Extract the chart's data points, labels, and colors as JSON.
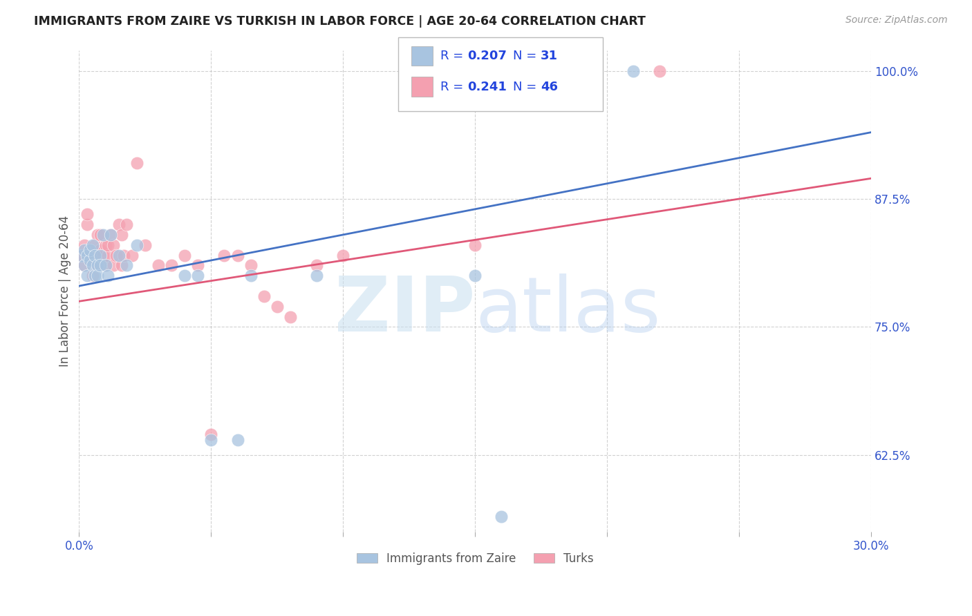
{
  "title": "IMMIGRANTS FROM ZAIRE VS TURKISH IN LABOR FORCE | AGE 20-64 CORRELATION CHART",
  "source": "Source: ZipAtlas.com",
  "ylabel": "In Labor Force | Age 20-64",
  "xlim": [
    0.0,
    0.3
  ],
  "ylim": [
    0.55,
    1.02
  ],
  "xticks": [
    0.0,
    0.05,
    0.1,
    0.15,
    0.2,
    0.25,
    0.3
  ],
  "xticklabels": [
    "0.0%",
    "",
    "",
    "",
    "",
    "",
    "30.0%"
  ],
  "yticks": [
    0.625,
    0.75,
    0.875,
    1.0
  ],
  "yticklabels": [
    "62.5%",
    "75.0%",
    "87.5%",
    "100.0%"
  ],
  "zaire_color": "#a8c4e0",
  "turks_color": "#f4a0b0",
  "zaire_line_color": "#4472c4",
  "turks_line_color": "#e05878",
  "legend_label_1": "Immigrants from Zaire",
  "legend_label_2": "Turks",
  "zaire_x": [
    0.001,
    0.002,
    0.002,
    0.003,
    0.003,
    0.004,
    0.004,
    0.005,
    0.005,
    0.006,
    0.006,
    0.007,
    0.007,
    0.008,
    0.008,
    0.009,
    0.01,
    0.011,
    0.012,
    0.015,
    0.018,
    0.022,
    0.04,
    0.045,
    0.05,
    0.06,
    0.065,
    0.09,
    0.15,
    0.21,
    0.16
  ],
  "zaire_y": [
    0.82,
    0.825,
    0.81,
    0.8,
    0.82,
    0.815,
    0.825,
    0.81,
    0.83,
    0.8,
    0.82,
    0.81,
    0.8,
    0.82,
    0.81,
    0.84,
    0.81,
    0.8,
    0.84,
    0.82,
    0.81,
    0.83,
    0.8,
    0.8,
    0.64,
    0.64,
    0.8,
    0.8,
    0.8,
    1.0,
    0.565
  ],
  "turks_x": [
    0.001,
    0.002,
    0.002,
    0.003,
    0.003,
    0.004,
    0.005,
    0.005,
    0.006,
    0.006,
    0.007,
    0.007,
    0.008,
    0.008,
    0.009,
    0.01,
    0.01,
    0.011,
    0.011,
    0.012,
    0.013,
    0.013,
    0.014,
    0.015,
    0.016,
    0.016,
    0.017,
    0.018,
    0.02,
    0.022,
    0.025,
    0.03,
    0.035,
    0.04,
    0.045,
    0.05,
    0.055,
    0.06,
    0.065,
    0.07,
    0.075,
    0.08,
    0.09,
    0.1,
    0.15,
    0.22
  ],
  "turks_y": [
    0.82,
    0.81,
    0.83,
    0.85,
    0.86,
    0.82,
    0.8,
    0.815,
    0.83,
    0.82,
    0.81,
    0.84,
    0.825,
    0.84,
    0.82,
    0.83,
    0.81,
    0.82,
    0.83,
    0.84,
    0.81,
    0.83,
    0.82,
    0.85,
    0.84,
    0.81,
    0.82,
    0.85,
    0.82,
    0.91,
    0.83,
    0.81,
    0.81,
    0.82,
    0.81,
    0.645,
    0.82,
    0.82,
    0.81,
    0.78,
    0.77,
    0.76,
    0.81,
    0.82,
    0.83,
    1.0
  ],
  "zaire_line_x0": 0.0,
  "zaire_line_x1": 0.3,
  "zaire_line_y0": 0.79,
  "zaire_line_y1": 0.94,
  "turks_line_x0": 0.0,
  "turks_line_x1": 0.3,
  "turks_line_y0": 0.775,
  "turks_line_y1": 0.895
}
